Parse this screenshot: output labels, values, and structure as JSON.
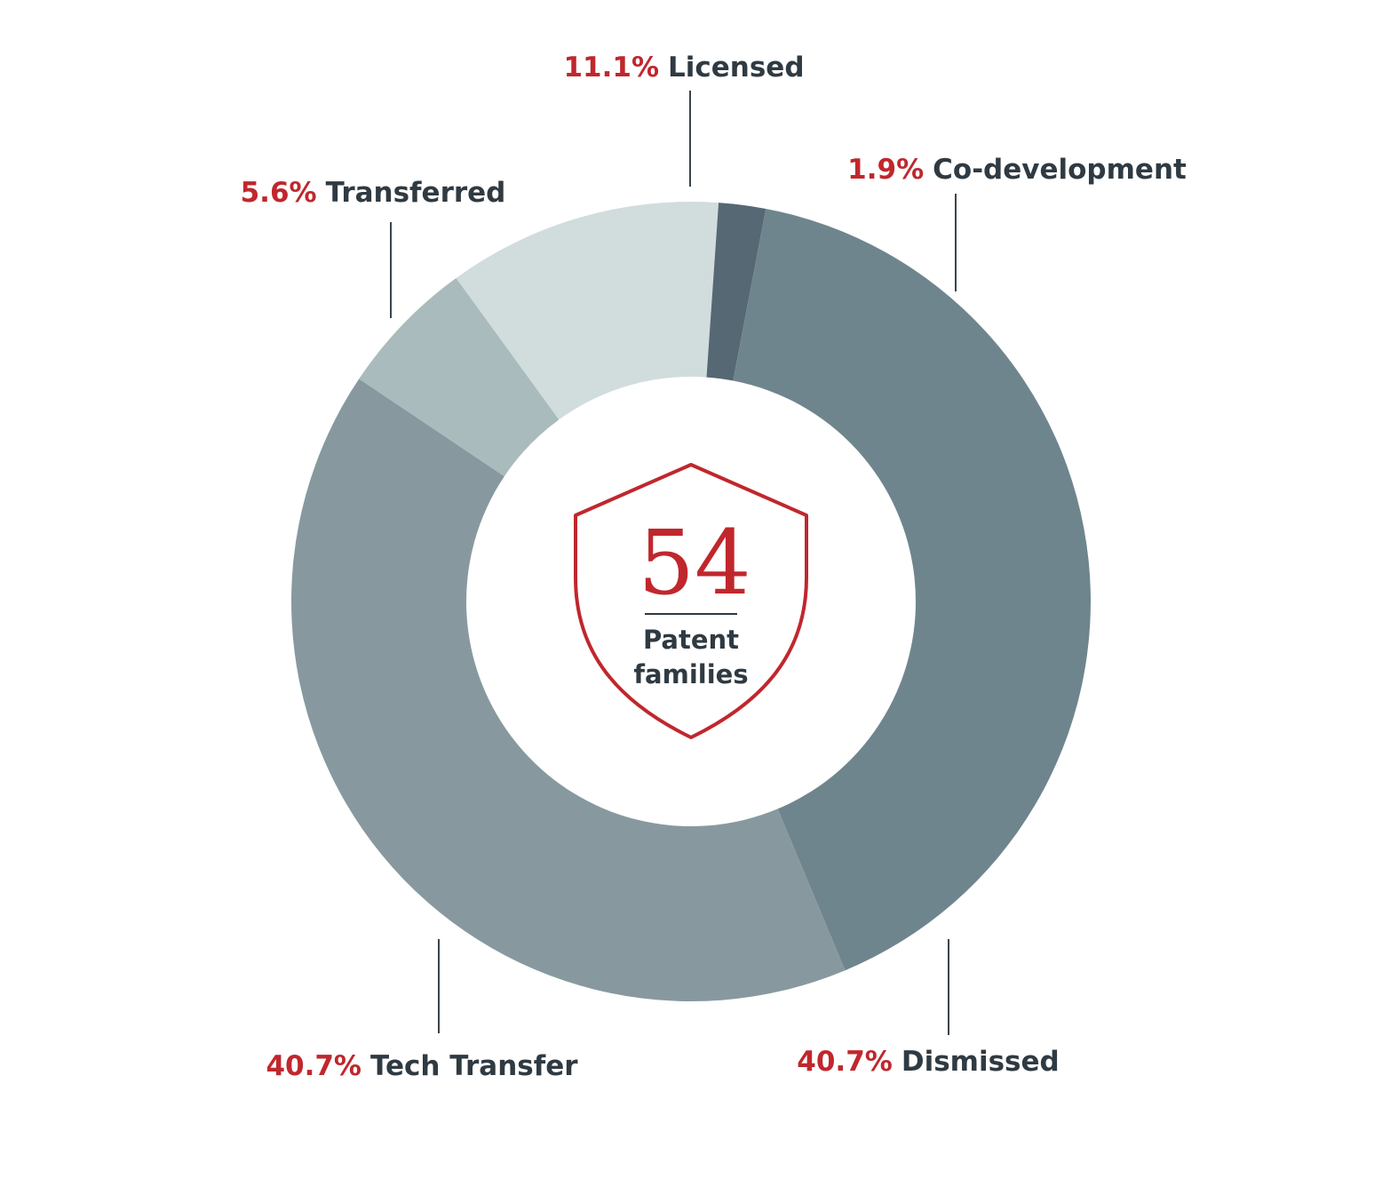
{
  "chart_data": {
    "type": "pie",
    "variant": "donut",
    "center": {
      "value": "54",
      "label_line1": "Patent",
      "label_line2": "families"
    },
    "slices": [
      {
        "name": "Licensed",
        "percent_label": "11.1%",
        "value": 11.1,
        "color": "#d1dcdd"
      },
      {
        "name": "Co-development",
        "percent_label": "1.9%",
        "value": 1.9,
        "color": "#566873"
      },
      {
        "name": "Dismissed",
        "percent_label": "40.7%",
        "value": 40.7,
        "color": "#6f858e"
      },
      {
        "name": "Tech Transfer",
        "percent_label": "40.7%",
        "value": 40.7,
        "color": "#87999f"
      },
      {
        "name": "Transferred",
        "percent_label": "5.6%",
        "value": 5.6,
        "color": "#a9bbbc"
      }
    ],
    "accent_color": "#c0272d"
  }
}
